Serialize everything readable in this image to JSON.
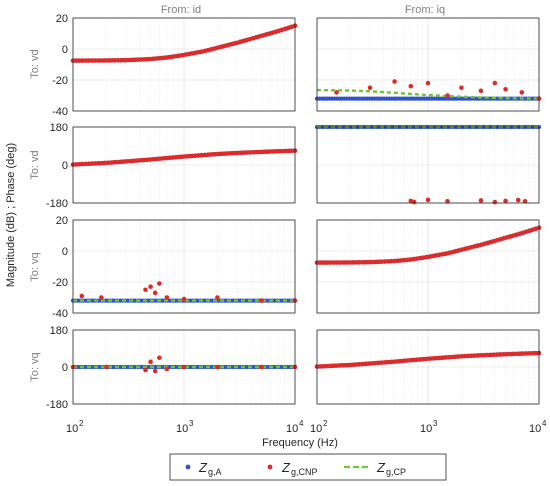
{
  "figure": {
    "column_titles": [
      "From: id",
      "From: iq"
    ],
    "row_labels": [
      "To: vd",
      "To: vd",
      "To: vq",
      "To: vq"
    ],
    "ylabel": "Magnitude (dB) ; Phase (deg)",
    "xlabel": "Frequency  (Hz)",
    "x_ticks": [
      "10",
      "10",
      "10"
    ],
    "x_tick_exps": [
      "2",
      "3",
      "4"
    ],
    "legend": {
      "entries": [
        {
          "base": "Z",
          "sub": "g,A"
        },
        {
          "base": "Z",
          "sub": "g,CNP"
        },
        {
          "base": "Z",
          "sub": "g,CP"
        }
      ]
    }
  },
  "colors": {
    "series_A": "#3352c6",
    "series_CNP": "#e02a27",
    "series_CP": "#6ec539",
    "axis": "#262626",
    "io_label": "#808080"
  },
  "chart_data": [
    {
      "type": "scatter",
      "row": 1,
      "col": 1,
      "kind": "magnitude",
      "ylim": [
        -40,
        20
      ],
      "yticks": [
        -40,
        -20,
        0,
        20
      ],
      "xscale": "log",
      "xlim": [
        100,
        10000
      ],
      "series": [
        {
          "name": "Zg,A",
          "x": [
            100,
            200,
            300,
            500,
            700,
            1000,
            1500,
            2000,
            3000,
            5000,
            7000,
            10000
          ],
          "y": [
            -7.5,
            -7.4,
            -7.2,
            -6.5,
            -5.5,
            -3.8,
            -1.5,
            0.8,
            4,
            8.5,
            11.5,
            15
          ]
        },
        {
          "name": "Zg,CNP",
          "x": [
            100,
            200,
            300,
            500,
            700,
            1000,
            1500,
            2000,
            3000,
            5000,
            7000,
            10000
          ],
          "y": [
            -7.5,
            -7.4,
            -7.2,
            -6.5,
            -5.5,
            -3.8,
            -1.5,
            0.8,
            4,
            8.5,
            11.5,
            15
          ]
        },
        {
          "name": "Zg,CP",
          "x": [
            100,
            200,
            300,
            500,
            700,
            1000,
            1500,
            2000,
            3000,
            5000,
            7000,
            10000
          ],
          "y": [
            -7.5,
            -7.4,
            -7.2,
            -6.5,
            -5.5,
            -3.8,
            -1.5,
            0.8,
            4,
            8.5,
            11.5,
            15
          ]
        }
      ]
    },
    {
      "type": "scatter",
      "row": 1,
      "col": 2,
      "kind": "magnitude",
      "ylim": [
        -40,
        20
      ],
      "yticks": [
        -40,
        -20,
        0,
        20
      ],
      "xscale": "log",
      "xlim": [
        100,
        10000
      ],
      "series": [
        {
          "name": "Zg,A",
          "x": [
            100,
            10000
          ],
          "y": [
            -32,
            -32
          ]
        },
        {
          "name": "Zg,CNP",
          "x": [
            150,
            300,
            500,
            700,
            1000,
            1500,
            2000,
            3000,
            4000,
            5000,
            7000,
            10000
          ],
          "y": [
            -28,
            -25,
            -21,
            -24,
            -22,
            -30,
            -25,
            -27,
            -22,
            -26,
            -28,
            -32
          ]
        },
        {
          "name": "Zg,CP",
          "x": [
            100,
            200,
            300,
            500,
            700,
            1000,
            2000,
            3000,
            5000,
            10000
          ],
          "y": [
            -26.5,
            -26.8,
            -27.3,
            -28.2,
            -29,
            -29.7,
            -30.8,
            -31.3,
            -31.7,
            -32
          ]
        }
      ]
    },
    {
      "type": "scatter",
      "row": 2,
      "col": 1,
      "kind": "phase",
      "ylim": [
        -180,
        180
      ],
      "yticks": [
        -180,
        0,
        180
      ],
      "xscale": "log",
      "xlim": [
        100,
        10000
      ],
      "series": [
        {
          "name": "Zg,A",
          "x": [
            100,
            200,
            300,
            500,
            700,
            1000,
            1500,
            2000,
            3000,
            5000,
            7000,
            10000
          ],
          "y": [
            2,
            10,
            17,
            26,
            33,
            40,
            47,
            52,
            57,
            62,
            65,
            68
          ]
        },
        {
          "name": "Zg,CNP",
          "x": [
            100,
            200,
            300,
            500,
            700,
            1000,
            1500,
            2000,
            3000,
            5000,
            7000,
            10000
          ],
          "y": [
            2,
            10,
            17,
            26,
            33,
            40,
            47,
            52,
            57,
            62,
            65,
            68
          ]
        },
        {
          "name": "Zg,CP",
          "x": [
            100,
            200,
            300,
            500,
            700,
            1000
          ],
          "y": [
            2,
            10,
            17,
            26,
            33,
            40
          ]
        }
      ]
    },
    {
      "type": "scatter",
      "row": 2,
      "col": 2,
      "kind": "phase",
      "ylim": [
        -180,
        180
      ],
      "yticks": [
        -180,
        0,
        180
      ],
      "xscale": "log",
      "xlim": [
        100,
        10000
      ],
      "series": [
        {
          "name": "Zg,A",
          "x": [
            100,
            10000
          ],
          "y": [
            180,
            180
          ]
        },
        {
          "name": "Zg,CNP",
          "x": [
            700,
            750,
            1000,
            1500,
            3000,
            4000,
            5000,
            6500,
            7500
          ],
          "y": [
            -170,
            -175,
            -165,
            -172,
            -168,
            -176,
            -170,
            -166,
            -172
          ]
        },
        {
          "name": "Zg,CP",
          "x": [
            100,
            10000
          ],
          "y": [
            180,
            180
          ]
        }
      ]
    },
    {
      "type": "scatter",
      "row": 3,
      "col": 1,
      "kind": "magnitude",
      "ylim": [
        -40,
        20
      ],
      "yticks": [
        -40,
        -20,
        0,
        20
      ],
      "xscale": "log",
      "xlim": [
        100,
        10000
      ],
      "series": [
        {
          "name": "Zg,A",
          "x": [
            100,
            10000
          ],
          "y": [
            -32,
            -32
          ]
        },
        {
          "name": "Zg,CNP",
          "x": [
            120,
            180,
            450,
            500,
            550,
            600,
            700,
            1000,
            2000,
            5000,
            10000
          ],
          "y": [
            -29,
            -30,
            -25,
            -23,
            -27,
            -21,
            -30,
            -31,
            -30,
            -32,
            -32
          ]
        },
        {
          "name": "Zg,CP",
          "x": [
            100,
            10000
          ],
          "y": [
            -32,
            -32
          ]
        }
      ]
    },
    {
      "type": "scatter",
      "row": 3,
      "col": 2,
      "kind": "magnitude",
      "ylim": [
        -40,
        20
      ],
      "yticks": [
        -40,
        -20,
        0,
        20
      ],
      "xscale": "log",
      "xlim": [
        100,
        10000
      ],
      "series": [
        {
          "name": "Zg,A",
          "x": [
            100,
            200,
            300,
            500,
            700,
            1000,
            1500,
            2000,
            3000,
            5000,
            7000,
            10000
          ],
          "y": [
            -7.5,
            -7.4,
            -7.2,
            -6.5,
            -5.5,
            -3.8,
            -1.5,
            0.8,
            4,
            8.5,
            11.5,
            15
          ]
        },
        {
          "name": "Zg,CNP",
          "x": [
            100,
            200,
            300,
            500,
            700,
            1000,
            1500,
            2000,
            3000,
            5000,
            7000,
            10000
          ],
          "y": [
            -7.5,
            -7.4,
            -7.2,
            -6.5,
            -5.5,
            -3.8,
            -1.5,
            0.8,
            4,
            8.5,
            11.5,
            15
          ]
        },
        {
          "name": "Zg,CP",
          "x": [
            100,
            200,
            300,
            500,
            700,
            1000,
            1500,
            2000,
            3000,
            5000,
            7000,
            10000
          ],
          "y": [
            -7.5,
            -7.4,
            -7.2,
            -6.5,
            -5.5,
            -3.8,
            -1.5,
            0.8,
            4,
            8.5,
            11.5,
            15
          ]
        }
      ]
    },
    {
      "type": "scatter",
      "row": 4,
      "col": 1,
      "kind": "phase",
      "ylim": [
        -180,
        180
      ],
      "yticks": [
        -180,
        0,
        180
      ],
      "xscale": "log",
      "xlim": [
        100,
        10000
      ],
      "series": [
        {
          "name": "Zg,A",
          "x": [
            100,
            10000
          ],
          "y": [
            0,
            0
          ]
        },
        {
          "name": "Zg,CNP",
          "x": [
            100,
            200,
            450,
            500,
            550,
            600,
            700,
            1000,
            2000,
            5000,
            10000
          ],
          "y": [
            0,
            0,
            -15,
            25,
            -20,
            45,
            -10,
            0,
            0,
            0,
            0
          ]
        },
        {
          "name": "Zg,CP",
          "x": [
            100,
            10000
          ],
          "y": [
            0,
            0
          ]
        }
      ]
    },
    {
      "type": "scatter",
      "row": 4,
      "col": 2,
      "kind": "phase",
      "ylim": [
        -180,
        180
      ],
      "yticks": [
        -180,
        0,
        180
      ],
      "xscale": "log",
      "xlim": [
        100,
        10000
      ],
      "series": [
        {
          "name": "Zg,A",
          "x": [
            100,
            200,
            300,
            500,
            700,
            1000,
            1500,
            2000,
            3000,
            5000,
            7000,
            10000
          ],
          "y": [
            2,
            10,
            17,
            26,
            33,
            40,
            47,
            52,
            57,
            62,
            65,
            68
          ]
        },
        {
          "name": "Zg,CNP",
          "x": [
            100,
            200,
            300,
            500,
            700,
            1000,
            1500,
            2000,
            3000,
            5000,
            7000,
            10000
          ],
          "y": [
            2,
            10,
            17,
            26,
            33,
            40,
            47,
            52,
            57,
            62,
            65,
            68
          ]
        },
        {
          "name": "Zg,CP",
          "x": [
            100,
            200,
            300
          ],
          "y": [
            2,
            10,
            17
          ]
        }
      ]
    }
  ]
}
